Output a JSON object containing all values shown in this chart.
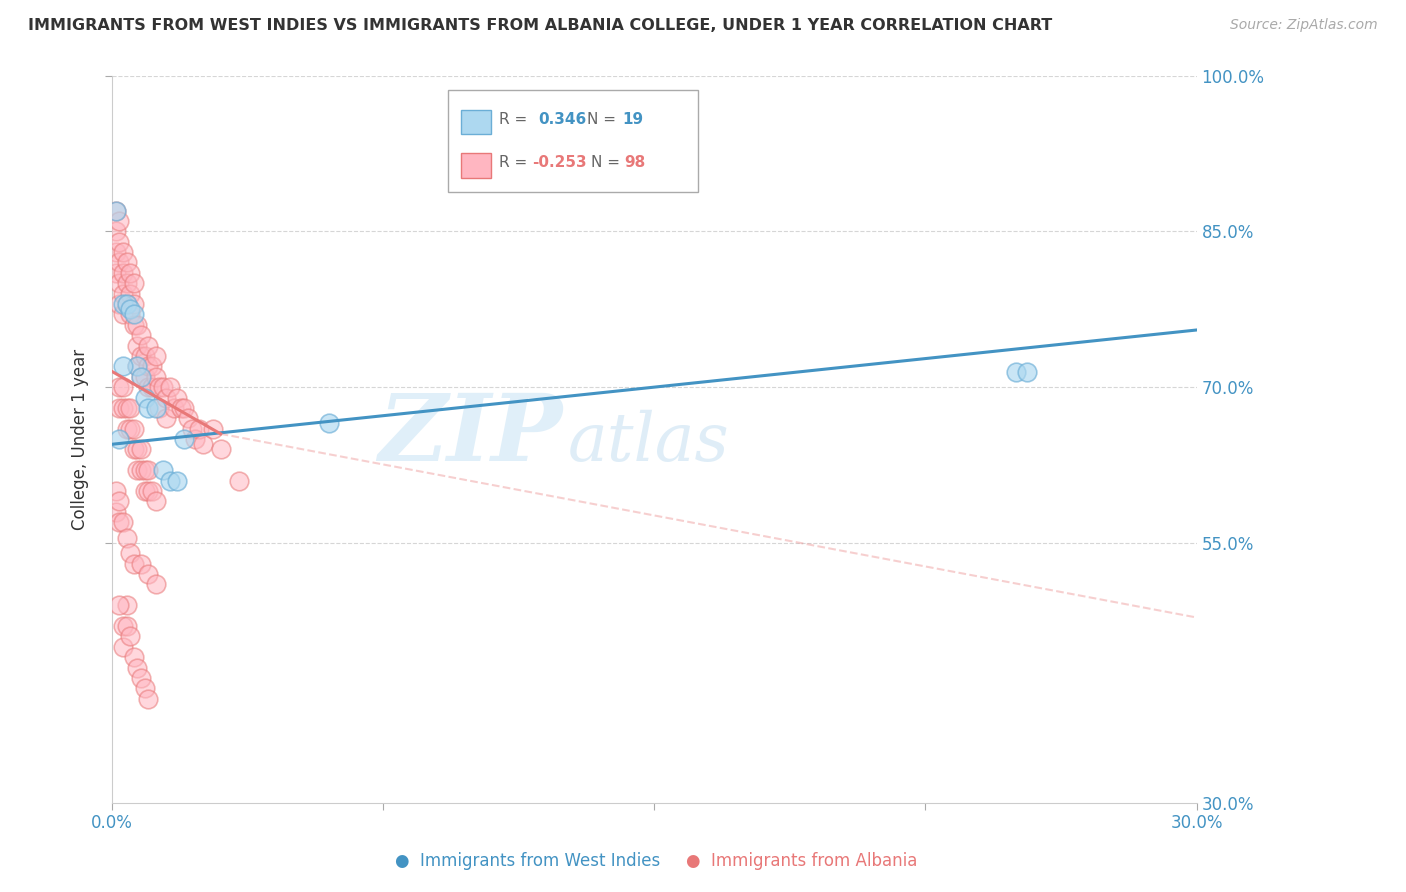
{
  "title": "IMMIGRANTS FROM WEST INDIES VS IMMIGRANTS FROM ALBANIA COLLEGE, UNDER 1 YEAR CORRELATION CHART",
  "source": "Source: ZipAtlas.com",
  "ylabel": "College, Under 1 year",
  "watermark_zip": "ZIP",
  "watermark_atlas": "atlas",
  "xmin": 0.0,
  "xmax": 0.3,
  "ymin": 0.3,
  "ymax": 1.0,
  "blue_line_color": "#4393c3",
  "pink_line_color": "#e87878",
  "blue_dot_facecolor": "#add8f0",
  "blue_dot_edgecolor": "#6baed6",
  "pink_dot_facecolor": "#ffb6c1",
  "pink_dot_edgecolor": "#e87878",
  "background_color": "#ffffff",
  "grid_color": "#cccccc",
  "title_color": "#333333",
  "right_tick_color": "#4393c3",
  "blue_scatter_x": [
    0.001,
    0.003,
    0.004,
    0.005,
    0.006,
    0.007,
    0.008,
    0.009,
    0.01,
    0.012,
    0.014,
    0.016,
    0.018,
    0.02,
    0.06,
    0.25,
    0.253,
    0.003,
    0.002
  ],
  "blue_scatter_y": [
    0.87,
    0.78,
    0.78,
    0.775,
    0.77,
    0.72,
    0.71,
    0.69,
    0.68,
    0.68,
    0.62,
    0.61,
    0.61,
    0.65,
    0.665,
    0.715,
    0.715,
    0.72,
    0.65
  ],
  "pink_scatter_x": [
    0.001,
    0.001,
    0.001,
    0.001,
    0.002,
    0.002,
    0.002,
    0.002,
    0.002,
    0.003,
    0.003,
    0.003,
    0.003,
    0.004,
    0.004,
    0.004,
    0.005,
    0.005,
    0.005,
    0.006,
    0.006,
    0.006,
    0.007,
    0.007,
    0.007,
    0.008,
    0.008,
    0.008,
    0.009,
    0.009,
    0.01,
    0.01,
    0.01,
    0.011,
    0.011,
    0.012,
    0.012,
    0.013,
    0.013,
    0.014,
    0.015,
    0.015,
    0.016,
    0.017,
    0.018,
    0.019,
    0.02,
    0.021,
    0.022,
    0.023,
    0.024,
    0.025,
    0.028,
    0.03,
    0.035,
    0.002,
    0.002,
    0.003,
    0.003,
    0.004,
    0.004,
    0.005,
    0.005,
    0.006,
    0.006,
    0.007,
    0.007,
    0.008,
    0.008,
    0.009,
    0.009,
    0.01,
    0.01,
    0.011,
    0.012,
    0.001,
    0.001,
    0.002,
    0.002,
    0.003,
    0.004,
    0.005,
    0.006,
    0.008,
    0.01,
    0.012,
    0.003,
    0.003,
    0.004,
    0.004,
    0.005,
    0.002,
    0.006,
    0.007,
    0.008,
    0.009,
    0.01
  ],
  "pink_scatter_y": [
    0.87,
    0.85,
    0.83,
    0.81,
    0.86,
    0.84,
    0.82,
    0.8,
    0.78,
    0.83,
    0.81,
    0.79,
    0.77,
    0.82,
    0.8,
    0.78,
    0.81,
    0.79,
    0.77,
    0.8,
    0.78,
    0.76,
    0.76,
    0.74,
    0.72,
    0.75,
    0.73,
    0.71,
    0.73,
    0.71,
    0.74,
    0.72,
    0.7,
    0.72,
    0.7,
    0.73,
    0.71,
    0.7,
    0.68,
    0.7,
    0.69,
    0.67,
    0.7,
    0.68,
    0.69,
    0.68,
    0.68,
    0.67,
    0.66,
    0.65,
    0.66,
    0.645,
    0.66,
    0.64,
    0.61,
    0.7,
    0.68,
    0.7,
    0.68,
    0.68,
    0.66,
    0.68,
    0.66,
    0.66,
    0.64,
    0.64,
    0.62,
    0.64,
    0.62,
    0.62,
    0.6,
    0.62,
    0.6,
    0.6,
    0.59,
    0.6,
    0.58,
    0.59,
    0.57,
    0.57,
    0.555,
    0.54,
    0.53,
    0.53,
    0.52,
    0.51,
    0.47,
    0.45,
    0.49,
    0.47,
    0.46,
    0.49,
    0.44,
    0.43,
    0.42,
    0.41,
    0.4
  ]
}
